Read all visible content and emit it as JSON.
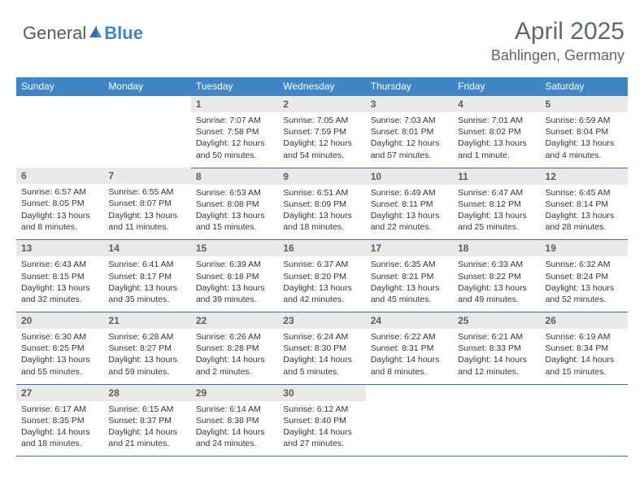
{
  "brand": {
    "general": "General",
    "blue": "Blue"
  },
  "title": "April 2025",
  "location": "Bahlingen, Germany",
  "colors": {
    "header_bar": "#3f86c7",
    "cell_border": "#3f6da0",
    "daynum_bg": "#e9e9e9",
    "text_dark": "#343434",
    "text_muted": "#5f666c"
  },
  "days_of_week": [
    "Sunday",
    "Monday",
    "Tuesday",
    "Wednesday",
    "Thursday",
    "Friday",
    "Saturday"
  ],
  "weeks": [
    [
      {
        "n": "",
        "lines": []
      },
      {
        "n": "",
        "lines": []
      },
      {
        "n": "1",
        "lines": [
          "Sunrise: 7:07 AM",
          "Sunset: 7:58 PM",
          "Daylight: 12 hours and 50 minutes."
        ]
      },
      {
        "n": "2",
        "lines": [
          "Sunrise: 7:05 AM",
          "Sunset: 7:59 PM",
          "Daylight: 12 hours and 54 minutes."
        ]
      },
      {
        "n": "3",
        "lines": [
          "Sunrise: 7:03 AM",
          "Sunset: 8:01 PM",
          "Daylight: 12 hours and 57 minutes."
        ]
      },
      {
        "n": "4",
        "lines": [
          "Sunrise: 7:01 AM",
          "Sunset: 8:02 PM",
          "Daylight: 13 hours and 1 minute."
        ]
      },
      {
        "n": "5",
        "lines": [
          "Sunrise: 6:59 AM",
          "Sunset: 8:04 PM",
          "Daylight: 13 hours and 4 minutes."
        ]
      }
    ],
    [
      {
        "n": "6",
        "lines": [
          "Sunrise: 6:57 AM",
          "Sunset: 8:05 PM",
          "Daylight: 13 hours and 8 minutes."
        ]
      },
      {
        "n": "7",
        "lines": [
          "Sunrise: 6:55 AM",
          "Sunset: 8:07 PM",
          "Daylight: 13 hours and 11 minutes."
        ]
      },
      {
        "n": "8",
        "lines": [
          "Sunrise: 6:53 AM",
          "Sunset: 8:08 PM",
          "Daylight: 13 hours and 15 minutes."
        ]
      },
      {
        "n": "9",
        "lines": [
          "Sunrise: 6:51 AM",
          "Sunset: 8:09 PM",
          "Daylight: 13 hours and 18 minutes."
        ]
      },
      {
        "n": "10",
        "lines": [
          "Sunrise: 6:49 AM",
          "Sunset: 8:11 PM",
          "Daylight: 13 hours and 22 minutes."
        ]
      },
      {
        "n": "11",
        "lines": [
          "Sunrise: 6:47 AM",
          "Sunset: 8:12 PM",
          "Daylight: 13 hours and 25 minutes."
        ]
      },
      {
        "n": "12",
        "lines": [
          "Sunrise: 6:45 AM",
          "Sunset: 8:14 PM",
          "Daylight: 13 hours and 28 minutes."
        ]
      }
    ],
    [
      {
        "n": "13",
        "lines": [
          "Sunrise: 6:43 AM",
          "Sunset: 8:15 PM",
          "Daylight: 13 hours and 32 minutes."
        ]
      },
      {
        "n": "14",
        "lines": [
          "Sunrise: 6:41 AM",
          "Sunset: 8:17 PM",
          "Daylight: 13 hours and 35 minutes."
        ]
      },
      {
        "n": "15",
        "lines": [
          "Sunrise: 6:39 AM",
          "Sunset: 8:18 PM",
          "Daylight: 13 hours and 39 minutes."
        ]
      },
      {
        "n": "16",
        "lines": [
          "Sunrise: 6:37 AM",
          "Sunset: 8:20 PM",
          "Daylight: 13 hours and 42 minutes."
        ]
      },
      {
        "n": "17",
        "lines": [
          "Sunrise: 6:35 AM",
          "Sunset: 8:21 PM",
          "Daylight: 13 hours and 45 minutes."
        ]
      },
      {
        "n": "18",
        "lines": [
          "Sunrise: 6:33 AM",
          "Sunset: 8:22 PM",
          "Daylight: 13 hours and 49 minutes."
        ]
      },
      {
        "n": "19",
        "lines": [
          "Sunrise: 6:32 AM",
          "Sunset: 8:24 PM",
          "Daylight: 13 hours and 52 minutes."
        ]
      }
    ],
    [
      {
        "n": "20",
        "lines": [
          "Sunrise: 6:30 AM",
          "Sunset: 8:25 PM",
          "Daylight: 13 hours and 55 minutes."
        ]
      },
      {
        "n": "21",
        "lines": [
          "Sunrise: 6:28 AM",
          "Sunset: 8:27 PM",
          "Daylight: 13 hours and 59 minutes."
        ]
      },
      {
        "n": "22",
        "lines": [
          "Sunrise: 6:26 AM",
          "Sunset: 8:28 PM",
          "Daylight: 14 hours and 2 minutes."
        ]
      },
      {
        "n": "23",
        "lines": [
          "Sunrise: 6:24 AM",
          "Sunset: 8:30 PM",
          "Daylight: 14 hours and 5 minutes."
        ]
      },
      {
        "n": "24",
        "lines": [
          "Sunrise: 6:22 AM",
          "Sunset: 8:31 PM",
          "Daylight: 14 hours and 8 minutes."
        ]
      },
      {
        "n": "25",
        "lines": [
          "Sunrise: 6:21 AM",
          "Sunset: 8:33 PM",
          "Daylight: 14 hours and 12 minutes."
        ]
      },
      {
        "n": "26",
        "lines": [
          "Sunrise: 6:19 AM",
          "Sunset: 8:34 PM",
          "Daylight: 14 hours and 15 minutes."
        ]
      }
    ],
    [
      {
        "n": "27",
        "lines": [
          "Sunrise: 6:17 AM",
          "Sunset: 8:35 PM",
          "Daylight: 14 hours and 18 minutes."
        ]
      },
      {
        "n": "28",
        "lines": [
          "Sunrise: 6:15 AM",
          "Sunset: 8:37 PM",
          "Daylight: 14 hours and 21 minutes."
        ]
      },
      {
        "n": "29",
        "lines": [
          "Sunrise: 6:14 AM",
          "Sunset: 8:38 PM",
          "Daylight: 14 hours and 24 minutes."
        ]
      },
      {
        "n": "30",
        "lines": [
          "Sunrise: 6:12 AM",
          "Sunset: 8:40 PM",
          "Daylight: 14 hours and 27 minutes."
        ]
      },
      {
        "n": "",
        "lines": []
      },
      {
        "n": "",
        "lines": []
      },
      {
        "n": "",
        "lines": []
      }
    ]
  ]
}
